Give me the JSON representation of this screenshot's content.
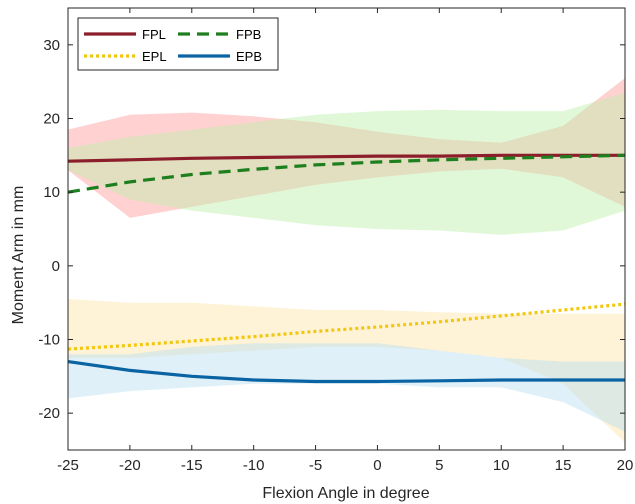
{
  "chart_data": {
    "type": "line",
    "title": "",
    "xlabel": "Flexion Angle in degree",
    "ylabel": "Moment Arm in mm",
    "xlim": [
      -25,
      20
    ],
    "ylim": [
      -25,
      35
    ],
    "xticks": [
      -25,
      -20,
      -15,
      -10,
      -5,
      0,
      5,
      10,
      15,
      20
    ],
    "yticks": [
      -20,
      -10,
      0,
      10,
      20,
      30
    ],
    "grid": false,
    "legend_position": "top-left",
    "series": [
      {
        "name": "FPL",
        "color": "#8c1d2b",
        "line_style": "solid",
        "x": [
          -25,
          -20,
          -15,
          -10,
          -5,
          0,
          5,
          10,
          15,
          20
        ],
        "y": [
          14.2,
          14.4,
          14.6,
          14.7,
          14.8,
          14.9,
          14.9,
          15.0,
          15.0,
          15.0
        ],
        "band": {
          "color": "#ff9a9a",
          "x": [
            -25,
            -20,
            -15,
            -10,
            -5,
            0,
            5,
            10,
            15,
            20
          ],
          "upper": [
            18.5,
            20.5,
            20.8,
            20.3,
            19.5,
            18.2,
            17.2,
            16.7,
            19.0,
            25.5
          ],
          "lower": [
            13.0,
            6.5,
            8.0,
            9.5,
            11.0,
            12.0,
            12.8,
            13.2,
            12.0,
            8.0
          ]
        }
      },
      {
        "name": "FPB",
        "color": "#1d7f1d",
        "line_style": "dashed",
        "x": [
          -25,
          -20,
          -15,
          -10,
          -5,
          0,
          5,
          10,
          15,
          20
        ],
        "y": [
          10.0,
          11.4,
          12.4,
          13.1,
          13.7,
          14.1,
          14.4,
          14.6,
          14.8,
          15.0
        ],
        "band": {
          "color": "#bdf0a8",
          "x": [
            -25,
            -20,
            -15,
            -10,
            -5,
            0,
            5,
            10,
            15,
            20
          ],
          "upper": [
            16.0,
            17.5,
            18.5,
            19.5,
            20.5,
            21.0,
            21.2,
            21.0,
            21.0,
            23.5
          ],
          "lower": [
            13.0,
            9.0,
            7.5,
            6.5,
            5.5,
            5.0,
            4.8,
            4.2,
            4.8,
            7.5
          ]
        }
      },
      {
        "name": "EPL",
        "color": "#f2c80f",
        "line_style": "dotted",
        "x": [
          -25,
          -20,
          -15,
          -10,
          -5,
          0,
          5,
          10,
          15,
          20
        ],
        "y": [
          -11.3,
          -10.8,
          -10.2,
          -9.6,
          -8.9,
          -8.3,
          -7.6,
          -6.8,
          -6.0,
          -5.2
        ],
        "band": {
          "color": "#fde3a6",
          "x": [
            -25,
            -20,
            -15,
            -10,
            -5,
            0,
            5,
            10,
            15,
            20
          ],
          "upper": [
            -4.5,
            -5.0,
            -5.0,
            -5.5,
            -6.0,
            -6.0,
            -6.3,
            -6.5,
            -6.5,
            -6.5
          ],
          "lower": [
            -12.5,
            -12.5,
            -12.0,
            -11.5,
            -11.0,
            -11.0,
            -11.5,
            -12.5,
            -16.0,
            -24.0
          ]
        }
      },
      {
        "name": "EPB",
        "color": "#0a63a3",
        "line_style": "solid",
        "x": [
          -25,
          -20,
          -15,
          -10,
          -5,
          0,
          5,
          10,
          15,
          20
        ],
        "y": [
          -13.0,
          -14.2,
          -15.0,
          -15.5,
          -15.7,
          -15.7,
          -15.6,
          -15.5,
          -15.5,
          -15.5
        ],
        "band": {
          "color": "#b9def2",
          "x": [
            -25,
            -20,
            -15,
            -10,
            -5,
            0,
            5,
            10,
            15,
            20
          ],
          "upper": [
            -12.0,
            -12.0,
            -11.0,
            -10.5,
            -10.5,
            -10.5,
            -11.5,
            -12.5,
            -13.0,
            -13.0
          ],
          "lower": [
            -18.0,
            -17.0,
            -16.5,
            -16.0,
            -16.0,
            -16.0,
            -16.5,
            -16.5,
            -18.5,
            -22.5
          ]
        }
      }
    ]
  }
}
